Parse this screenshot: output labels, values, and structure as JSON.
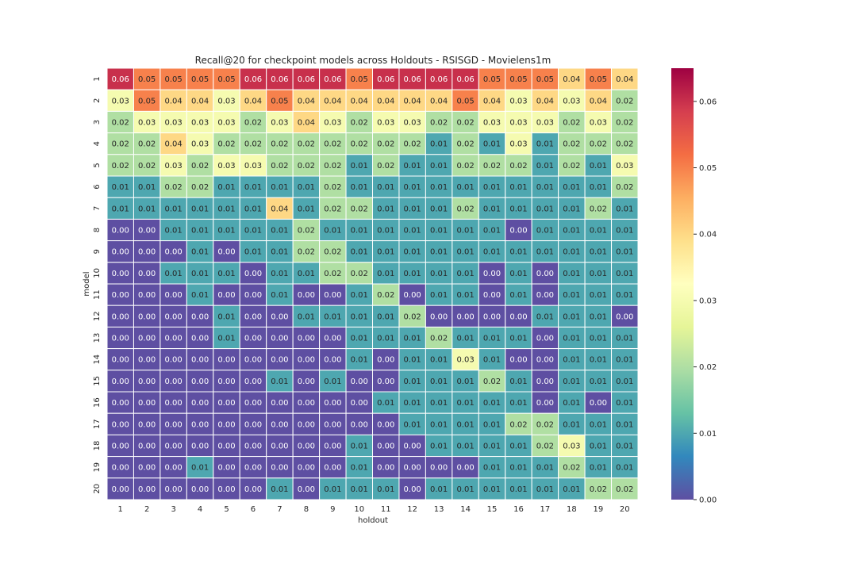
{
  "chart_data": {
    "type": "heatmap",
    "title": "Recall@20 for checkpoint models across Holdouts - RSISGD - Movielens1m",
    "xlabel": "holdout",
    "ylabel": "model",
    "x_categories": [
      "1",
      "2",
      "3",
      "4",
      "5",
      "6",
      "7",
      "8",
      "9",
      "10",
      "11",
      "12",
      "13",
      "14",
      "15",
      "16",
      "17",
      "18",
      "19",
      "20"
    ],
    "y_categories": [
      "1",
      "2",
      "3",
      "4",
      "5",
      "6",
      "7",
      "8",
      "9",
      "10",
      "11",
      "12",
      "13",
      "14",
      "15",
      "16",
      "17",
      "18",
      "19",
      "20"
    ],
    "values": [
      [
        0.06,
        0.05,
        0.05,
        0.05,
        0.05,
        0.06,
        0.06,
        0.06,
        0.06,
        0.05,
        0.06,
        0.06,
        0.06,
        0.06,
        0.05,
        0.05,
        0.05,
        0.04,
        0.05,
        0.04
      ],
      [
        0.03,
        0.05,
        0.04,
        0.04,
        0.03,
        0.04,
        0.05,
        0.04,
        0.04,
        0.04,
        0.04,
        0.04,
        0.04,
        0.05,
        0.04,
        0.03,
        0.04,
        0.03,
        0.04,
        0.02
      ],
      [
        0.02,
        0.03,
        0.03,
        0.03,
        0.03,
        0.02,
        0.03,
        0.04,
        0.03,
        0.02,
        0.03,
        0.03,
        0.02,
        0.02,
        0.03,
        0.03,
        0.03,
        0.02,
        0.03,
        0.02
      ],
      [
        0.02,
        0.02,
        0.04,
        0.03,
        0.02,
        0.02,
        0.02,
        0.02,
        0.02,
        0.02,
        0.02,
        0.02,
        0.01,
        0.02,
        0.01,
        0.03,
        0.01,
        0.02,
        0.02,
        0.02
      ],
      [
        0.02,
        0.02,
        0.03,
        0.02,
        0.03,
        0.03,
        0.02,
        0.02,
        0.02,
        0.01,
        0.02,
        0.01,
        0.01,
        0.02,
        0.02,
        0.02,
        0.01,
        0.02,
        0.01,
        0.03
      ],
      [
        0.01,
        0.01,
        0.02,
        0.02,
        0.01,
        0.01,
        0.01,
        0.01,
        0.02,
        0.01,
        0.01,
        0.01,
        0.01,
        0.01,
        0.01,
        0.01,
        0.01,
        0.01,
        0.01,
        0.02
      ],
      [
        0.01,
        0.01,
        0.01,
        0.01,
        0.01,
        0.01,
        0.04,
        0.01,
        0.02,
        0.02,
        0.01,
        0.01,
        0.01,
        0.02,
        0.01,
        0.01,
        0.01,
        0.01,
        0.02,
        0.01
      ],
      [
        0.0,
        0.0,
        0.01,
        0.01,
        0.01,
        0.01,
        0.01,
        0.02,
        0.01,
        0.01,
        0.01,
        0.01,
        0.01,
        0.01,
        0.01,
        0.0,
        0.01,
        0.01,
        0.01,
        0.01
      ],
      [
        0.0,
        0.0,
        0.0,
        0.01,
        0.0,
        0.01,
        0.01,
        0.02,
        0.02,
        0.01,
        0.01,
        0.01,
        0.01,
        0.01,
        0.01,
        0.01,
        0.01,
        0.01,
        0.01,
        0.01
      ],
      [
        0.0,
        0.0,
        0.01,
        0.01,
        0.01,
        0.0,
        0.01,
        0.01,
        0.02,
        0.02,
        0.01,
        0.01,
        0.01,
        0.01,
        0.0,
        0.01,
        0.0,
        0.01,
        0.01,
        0.01
      ],
      [
        0.0,
        0.0,
        0.0,
        0.01,
        0.0,
        0.0,
        0.01,
        0.0,
        0.0,
        0.01,
        0.02,
        0.0,
        0.01,
        0.01,
        0.0,
        0.01,
        0.0,
        0.01,
        0.01,
        0.01
      ],
      [
        0.0,
        0.0,
        0.0,
        0.0,
        0.01,
        0.0,
        0.0,
        0.01,
        0.01,
        0.01,
        0.01,
        0.02,
        0.0,
        0.0,
        0.0,
        0.0,
        0.01,
        0.01,
        0.01,
        0.0
      ],
      [
        0.0,
        0.0,
        0.0,
        0.0,
        0.01,
        0.0,
        0.0,
        0.0,
        0.0,
        0.01,
        0.01,
        0.01,
        0.02,
        0.01,
        0.01,
        0.01,
        0.0,
        0.01,
        0.01,
        0.01
      ],
      [
        0.0,
        0.0,
        0.0,
        0.0,
        0.0,
        0.0,
        0.0,
        0.0,
        0.0,
        0.01,
        0.0,
        0.01,
        0.01,
        0.03,
        0.01,
        0.0,
        0.0,
        0.01,
        0.01,
        0.01
      ],
      [
        0.0,
        0.0,
        0.0,
        0.0,
        0.0,
        0.0,
        0.01,
        0.0,
        0.01,
        0.0,
        0.0,
        0.01,
        0.01,
        0.01,
        0.02,
        0.01,
        0.0,
        0.01,
        0.01,
        0.01
      ],
      [
        0.0,
        0.0,
        0.0,
        0.0,
        0.0,
        0.0,
        0.0,
        0.0,
        0.0,
        0.0,
        0.01,
        0.01,
        0.01,
        0.01,
        0.01,
        0.01,
        0.0,
        0.01,
        0.0,
        0.01
      ],
      [
        0.0,
        0.0,
        0.0,
        0.0,
        0.0,
        0.0,
        0.0,
        0.0,
        0.0,
        0.0,
        0.0,
        0.01,
        0.01,
        0.01,
        0.01,
        0.02,
        0.02,
        0.01,
        0.01,
        0.01
      ],
      [
        0.0,
        0.0,
        0.0,
        0.0,
        0.0,
        0.0,
        0.0,
        0.0,
        0.0,
        0.01,
        0.0,
        0.0,
        0.01,
        0.01,
        0.01,
        0.01,
        0.02,
        0.03,
        0.01,
        0.01
      ],
      [
        0.0,
        0.0,
        0.0,
        0.01,
        0.0,
        0.0,
        0.0,
        0.0,
        0.0,
        0.01,
        0.0,
        0.0,
        0.0,
        0.0,
        0.01,
        0.01,
        0.01,
        0.02,
        0.01,
        0.01
      ],
      [
        0.0,
        0.0,
        0.0,
        0.0,
        0.0,
        0.0,
        0.01,
        0.0,
        0.01,
        0.01,
        0.01,
        0.0,
        0.01,
        0.01,
        0.01,
        0.01,
        0.01,
        0.01,
        0.02,
        0.02
      ]
    ],
    "value_format": "0.00",
    "colorscale": "Spectral_r",
    "vmin": 0.0,
    "vmax": 0.065,
    "colorbar": {
      "ticks": [
        "0.00",
        "0.01",
        "0.02",
        "0.03",
        "0.04",
        "0.05",
        "0.06"
      ],
      "tick_values": [
        0.0,
        0.01,
        0.02,
        0.03,
        0.04,
        0.05,
        0.06
      ]
    },
    "grid": false,
    "cell_borders": "#ffffff"
  }
}
